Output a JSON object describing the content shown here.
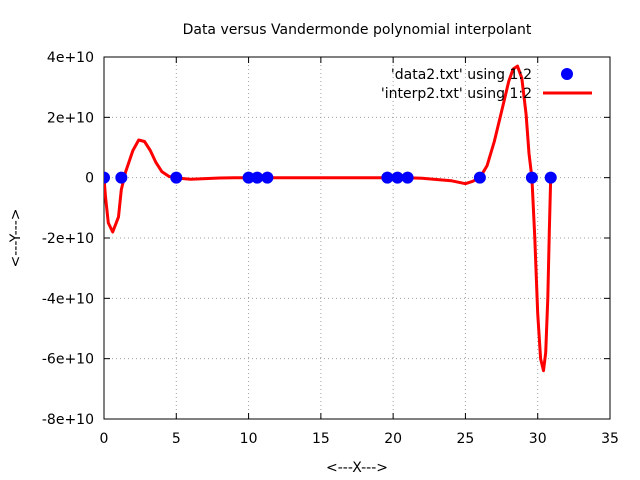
{
  "chart_data": {
    "type": "scatter+line",
    "title": "Data versus Vandermonde polynomial interpolant",
    "xlabel": "<---X--->",
    "ylabel": "<---Y--->",
    "xlim": [
      0,
      35
    ],
    "ylim": [
      -80000000000,
      40000000000
    ],
    "grid": true,
    "legend_position": "top-right",
    "x_ticks": [
      {
        "value": 0,
        "label": "0"
      },
      {
        "value": 5,
        "label": "5"
      },
      {
        "value": 10,
        "label": "10"
      },
      {
        "value": 15,
        "label": "15"
      },
      {
        "value": 20,
        "label": "20"
      },
      {
        "value": 25,
        "label": "25"
      },
      {
        "value": 30,
        "label": "30"
      },
      {
        "value": 35,
        "label": "35"
      }
    ],
    "y_ticks": [
      {
        "value": 40000000000,
        "label": "4e+10"
      },
      {
        "value": 20000000000,
        "label": "2e+10"
      },
      {
        "value": 0,
        "label": "0"
      },
      {
        "value": -20000000000,
        "label": "-2e+10"
      },
      {
        "value": -40000000000,
        "label": "-4e+10"
      },
      {
        "value": -60000000000,
        "label": "-6e+10"
      },
      {
        "value": -80000000000,
        "label": "-8e+10"
      }
    ],
    "series": [
      {
        "name": "'data2.txt' using 1:2",
        "kind": "points",
        "color": "#0000ff",
        "x": [
          0,
          1.2,
          5,
          10,
          10.6,
          11.3,
          19.6,
          20.3,
          21,
          26,
          29.6,
          30.9
        ],
        "y": [
          0,
          0,
          0,
          0,
          0,
          0,
          0,
          0,
          0,
          0,
          0,
          0
        ]
      },
      {
        "name": "'interp2.txt' using 1:2",
        "kind": "line",
        "color": "#ff0000",
        "x": [
          0,
          0.1,
          0.3,
          0.6,
          1.0,
          1.2,
          1.5,
          2.0,
          2.4,
          2.8,
          3.2,
          3.6,
          4.0,
          4.5,
          5.0,
          5.5,
          6.0,
          7.0,
          8.0,
          9.0,
          10.0,
          11.0,
          12.0,
          14.0,
          16.0,
          18.0,
          19.6,
          20.3,
          21.0,
          22.0,
          23.0,
          24.0,
          25.0,
          25.5,
          26.0,
          26.5,
          27.0,
          27.5,
          28.0,
          28.3,
          28.6,
          28.9,
          29.2,
          29.4,
          29.6,
          29.8,
          30.0,
          30.2,
          30.4,
          30.55,
          30.7,
          30.8,
          30.9
        ],
        "y": [
          0,
          -6000000000,
          -15000000000,
          -18000000000,
          -13000000000,
          -4000000000,
          2000000000,
          9000000000,
          12500000000,
          12000000000,
          9000000000,
          5000000000,
          2000000000,
          400000000,
          0,
          -300000000,
          -500000000,
          -300000000,
          -100000000,
          -50000000,
          0,
          0,
          0,
          0,
          0,
          0,
          0,
          0,
          0,
          -200000000,
          -600000000,
          -1000000000,
          -2000000000,
          -1200000000,
          0,
          4000000000,
          12000000000,
          22000000000,
          32000000000,
          36000000000,
          37000000000,
          33000000000,
          21000000000,
          8000000000,
          0,
          -20000000000,
          -45000000000,
          -60000000000,
          -64000000000,
          -58000000000,
          -40000000000,
          -18000000000,
          0
        ]
      }
    ]
  }
}
